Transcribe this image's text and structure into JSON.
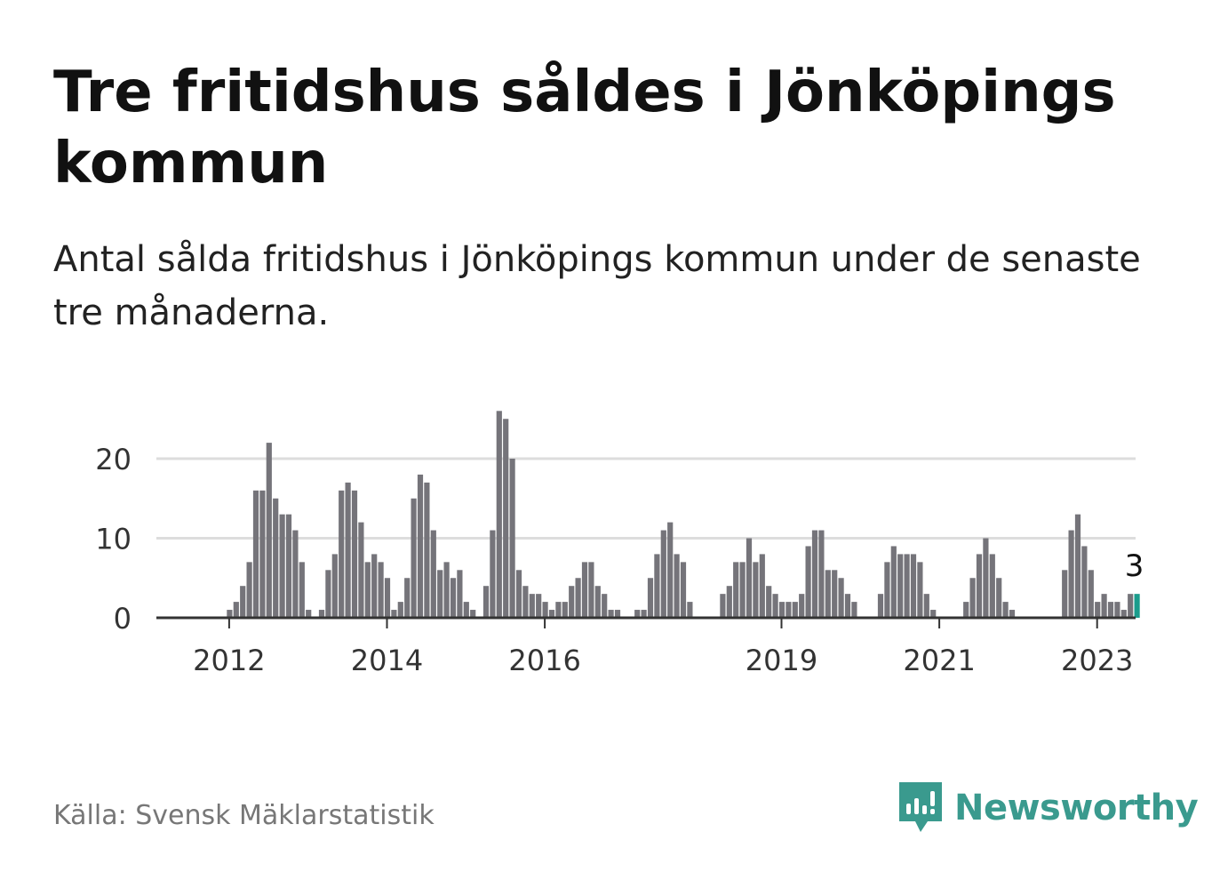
{
  "title": "Tre fritidshus såldes i Jönköpings kommun",
  "subtitle": "Antal sålda fritidshus i Jönköpings kommun under de senaste tre månaderna.",
  "source": "Källa: Svensk Mäklarstatistik",
  "brand": {
    "name": "Newsworthy",
    "icon": "newsworthy-logo-icon"
  },
  "colors": {
    "bar": "#75747a",
    "highlight": "#1a9c8c",
    "grid": "#dddddd",
    "axis": "#333333",
    "brand": "#3a9a8e"
  },
  "chart_data": {
    "type": "bar",
    "ylim": [
      0,
      27
    ],
    "yticks": [
      0,
      10,
      20
    ],
    "grid": true,
    "xtick_labels": [
      {
        "label": "2012",
        "index": 7
      },
      {
        "label": "2014",
        "index": 31
      },
      {
        "label": "2016",
        "index": 55
      },
      {
        "label": "2019",
        "index": 91
      },
      {
        "label": "2021",
        "index": 115
      },
      {
        "label": "2023",
        "index": 139
      }
    ],
    "values": [
      0,
      0,
      0,
      0,
      0,
      0,
      0,
      1,
      2,
      4,
      7,
      16,
      16,
      22,
      15,
      13,
      13,
      11,
      7,
      1,
      0,
      1,
      6,
      8,
      16,
      17,
      16,
      12,
      7,
      8,
      7,
      5,
      1,
      2,
      5,
      15,
      18,
      17,
      11,
      6,
      7,
      5,
      6,
      2,
      1,
      0,
      4,
      11,
      26,
      25,
      20,
      6,
      4,
      3,
      3,
      2,
      1,
      2,
      2,
      4,
      5,
      7,
      7,
      4,
      3,
      1,
      1,
      0,
      0,
      1,
      1,
      5,
      8,
      11,
      12,
      8,
      7,
      2,
      0,
      0,
      0,
      0,
      3,
      4,
      7,
      7,
      10,
      7,
      8,
      4,
      3,
      2,
      2,
      2,
      3,
      9,
      11,
      11,
      6,
      6,
      5,
      3,
      2,
      0,
      0,
      0,
      3,
      7,
      9,
      8,
      8,
      8,
      7,
      3,
      1,
      0,
      0,
      0,
      0,
      2,
      5,
      8,
      10,
      8,
      5,
      2,
      1,
      0,
      0,
      0,
      0,
      0,
      0,
      0,
      6,
      11,
      13,
      9,
      6,
      2,
      3,
      2,
      2,
      1,
      3,
      3
    ],
    "highlight_index": 145,
    "highlight_label": "3"
  }
}
